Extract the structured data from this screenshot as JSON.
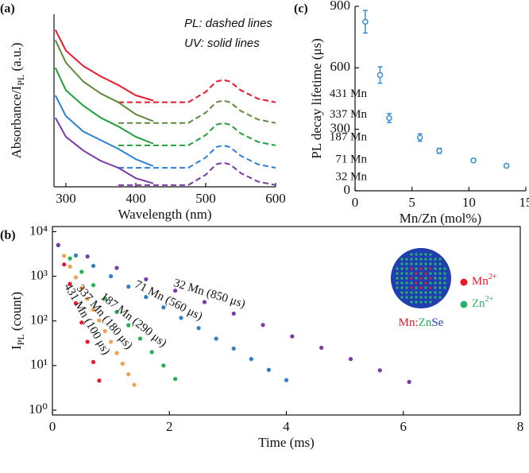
{
  "chart_data": [
    {
      "type": "line",
      "title": "(a)",
      "xlabel": "Wavelength (nm)",
      "ylabel": "Absorbance/I",
      "ylabel_sub": "PL",
      "ylabel_end": " (a.u.)",
      "annotations": [
        "PL: dashed lines",
        "UV: solid lines"
      ],
      "xlim": [
        283,
        600
      ],
      "xticks": [
        300,
        400,
        500,
        600
      ],
      "ylim": [
        0,
        10
      ],
      "x_uv": [
        285,
        300,
        325,
        350,
        375,
        400,
        425
      ],
      "x_pl": [
        375,
        400,
        425,
        450,
        475,
        500,
        515,
        525,
        535,
        550,
        575,
        600
      ],
      "series": [
        {
          "name": "431 Mn",
          "color": "#e8192c",
          "values": [
            9.1,
            7.9,
            7.0,
            6.4,
            5.9,
            5.3,
            5.0
          ],
          "pl_values": [
            4.9,
            4.9,
            4.9,
            4.9,
            4.9,
            5.5,
            6.1,
            6.2,
            6.1,
            5.6,
            5.1,
            4.9
          ]
        },
        {
          "name": "337 Mn",
          "color": "#5f8a3a",
          "values": [
            8.5,
            7.2,
            6.1,
            5.4,
            4.9,
            4.2,
            3.8
          ],
          "pl_values": [
            3.7,
            3.7,
            3.7,
            3.7,
            3.7,
            4.3,
            4.9,
            5.0,
            4.9,
            4.4,
            3.9,
            3.7
          ]
        },
        {
          "name": "187 Mn",
          "color": "#22a03c",
          "values": [
            6.9,
            5.6,
            4.7,
            4.0,
            3.5,
            2.9,
            2.5
          ],
          "pl_values": [
            2.4,
            2.4,
            2.4,
            2.4,
            2.4,
            3.0,
            3.6,
            3.7,
            3.6,
            3.1,
            2.6,
            2.4
          ]
        },
        {
          "name": "71 Mn",
          "color": "#2e7fd8",
          "values": [
            5.3,
            4.1,
            3.2,
            2.7,
            2.2,
            1.6,
            1.2
          ],
          "pl_values": [
            1.1,
            1.1,
            1.1,
            1.1,
            1.1,
            1.7,
            2.3,
            2.4,
            2.3,
            1.8,
            1.3,
            1.1
          ]
        },
        {
          "name": "32 Mn",
          "color": "#7a3aa8",
          "values": [
            4.0,
            2.9,
            2.1,
            1.5,
            1.1,
            0.5,
            0.2
          ],
          "pl_values": [
            0.1,
            0.1,
            0.1,
            0.1,
            0.1,
            0.7,
            1.3,
            1.4,
            1.3,
            0.8,
            0.3,
            0.1
          ]
        }
      ]
    },
    {
      "type": "scatter",
      "title": "(b)",
      "log_y": true,
      "xlabel": "Time (ms)",
      "ylabel": "I",
      "ylabel_sub": "PL",
      "ylabel_end": " (count)",
      "xlim": [
        0,
        8
      ],
      "xticks": [
        0,
        2,
        4,
        6,
        8
      ],
      "ylim": [
        0.78,
        13000
      ],
      "yticks": [
        {
          "value": 1,
          "label": "10⁰"
        },
        {
          "value": 10,
          "label": "10¹"
        },
        {
          "value": 100,
          "label": "10²"
        },
        {
          "value": 1000,
          "label": "10³"
        },
        {
          "value": 10000,
          "label": "10⁴"
        }
      ],
      "series": [
        {
          "name": "431 Mn (100 μs)",
          "color": "#e8192c",
          "x": [
            0.1,
            0.2,
            0.3,
            0.4,
            0.5,
            0.6,
            0.7,
            0.8
          ],
          "values": [
            5000,
            1839,
            677,
            249,
            92,
            34,
            12,
            4.6
          ]
        },
        {
          "name": "337 Mn (180 μs)",
          "color": "#f0a050",
          "x": [
            0.1,
            0.2,
            0.3,
            0.4,
            0.5,
            0.6,
            0.7,
            0.8,
            0.9,
            1.0,
            1.1,
            1.2,
            1.3,
            1.4
          ],
          "values": [
            5000,
            2868,
            1645,
            944,
            541,
            311,
            178,
            102,
            59,
            34,
            19,
            11,
            6.4,
            3.7
          ]
        },
        {
          "name": "187 Mn (290 μs)",
          "color": "#22b050",
          "x": [
            0.1,
            0.3,
            0.5,
            0.7,
            0.9,
            1.1,
            1.3,
            1.5,
            1.7,
            1.9,
            2.1
          ],
          "values": [
            5000,
            2509,
            1259,
            632,
            317,
            159,
            80,
            40,
            20,
            10,
            5.0
          ]
        },
        {
          "name": "71 Mn (560 μs)",
          "color": "#2e7fc4",
          "x": [
            0.1,
            0.4,
            0.7,
            1.0,
            1.3,
            1.6,
            1.9,
            2.2,
            2.5,
            2.8,
            3.1,
            3.4,
            3.7,
            4.0
          ],
          "values": [
            5000,
            2926,
            1712,
            1002,
            586,
            343,
            201,
            117,
            69,
            40,
            24,
            14,
            8.0,
            4.7
          ]
        },
        {
          "name": "32 Mn (850 μs)",
          "color": "#7a3aa8",
          "x": [
            0.1,
            0.6,
            1.1,
            1.6,
            2.1,
            2.6,
            3.1,
            3.6,
            4.1,
            4.6,
            5.1,
            5.6,
            6.1
          ],
          "values": [
            5000,
            2776,
            1541,
            856,
            475,
            264,
            146,
            81,
            45,
            25,
            14,
            7.8,
            4.3
          ]
        }
      ],
      "inset": {
        "mn": "Mn",
        "mn_sup": "2+",
        "zn": "Zn",
        "zn_sup": "2+",
        "formula": [
          "Mn:",
          "Zn",
          "Se"
        ],
        "colors": [
          "#e8192c",
          "#22b050",
          "#1f3fb0"
        ]
      }
    },
    {
      "type": "errorbar",
      "title": "(c)",
      "xlabel": "Mn/Zn (mol%)",
      "ylabel": "PL decay lifetime (μs)",
      "xlim": [
        0,
        15
      ],
      "xticks": [
        0,
        5,
        10,
        15
      ],
      "ylim": [
        0,
        900
      ],
      "yticks": [
        0,
        300,
        600,
        900
      ],
      "color": "#3a8ed8",
      "x": [
        0.9,
        2.2,
        3.0,
        5.7,
        7.4,
        10.4,
        13.3
      ],
      "values": [
        825,
        565,
        355,
        260,
        195,
        148,
        122
      ],
      "errors": [
        55,
        40,
        22,
        18,
        12,
        8,
        8
      ]
    }
  ]
}
